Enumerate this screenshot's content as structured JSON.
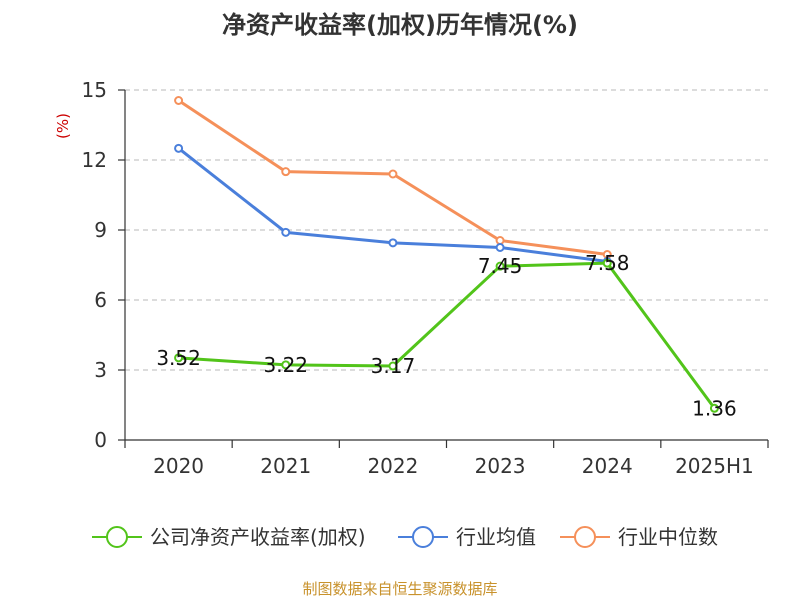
{
  "chart_data": {
    "type": "line",
    "title": "净资产收益率(加权)历年情况(%)",
    "ylabel": "(%)",
    "xlabel": "",
    "categories": [
      "2020",
      "2021",
      "2022",
      "2023",
      "2024",
      "2025H1"
    ],
    "ylim": [
      0,
      15
    ],
    "yticks": [
      "0",
      "3",
      "6",
      "9",
      "12",
      "15"
    ],
    "grid": true,
    "legend_position": "bottom",
    "series": [
      {
        "name": "公司净资产收益率(加权)",
        "color": "#52c41a",
        "values": [
          3.52,
          3.22,
          3.17,
          7.45,
          7.58,
          1.36
        ],
        "labels": [
          "3.52",
          "3.22",
          "3.17",
          "7.45",
          "7.58",
          "1.36"
        ]
      },
      {
        "name": "行业均值",
        "color": "#4a7fdb",
        "values": [
          12.5,
          8.9,
          8.45,
          8.25,
          7.65,
          null
        ]
      },
      {
        "name": "行业中位数",
        "color": "#f5905a",
        "values": [
          14.55,
          11.5,
          11.4,
          8.55,
          7.95,
          null
        ]
      }
    ]
  },
  "source": "制图数据来自恒生聚源数据库"
}
